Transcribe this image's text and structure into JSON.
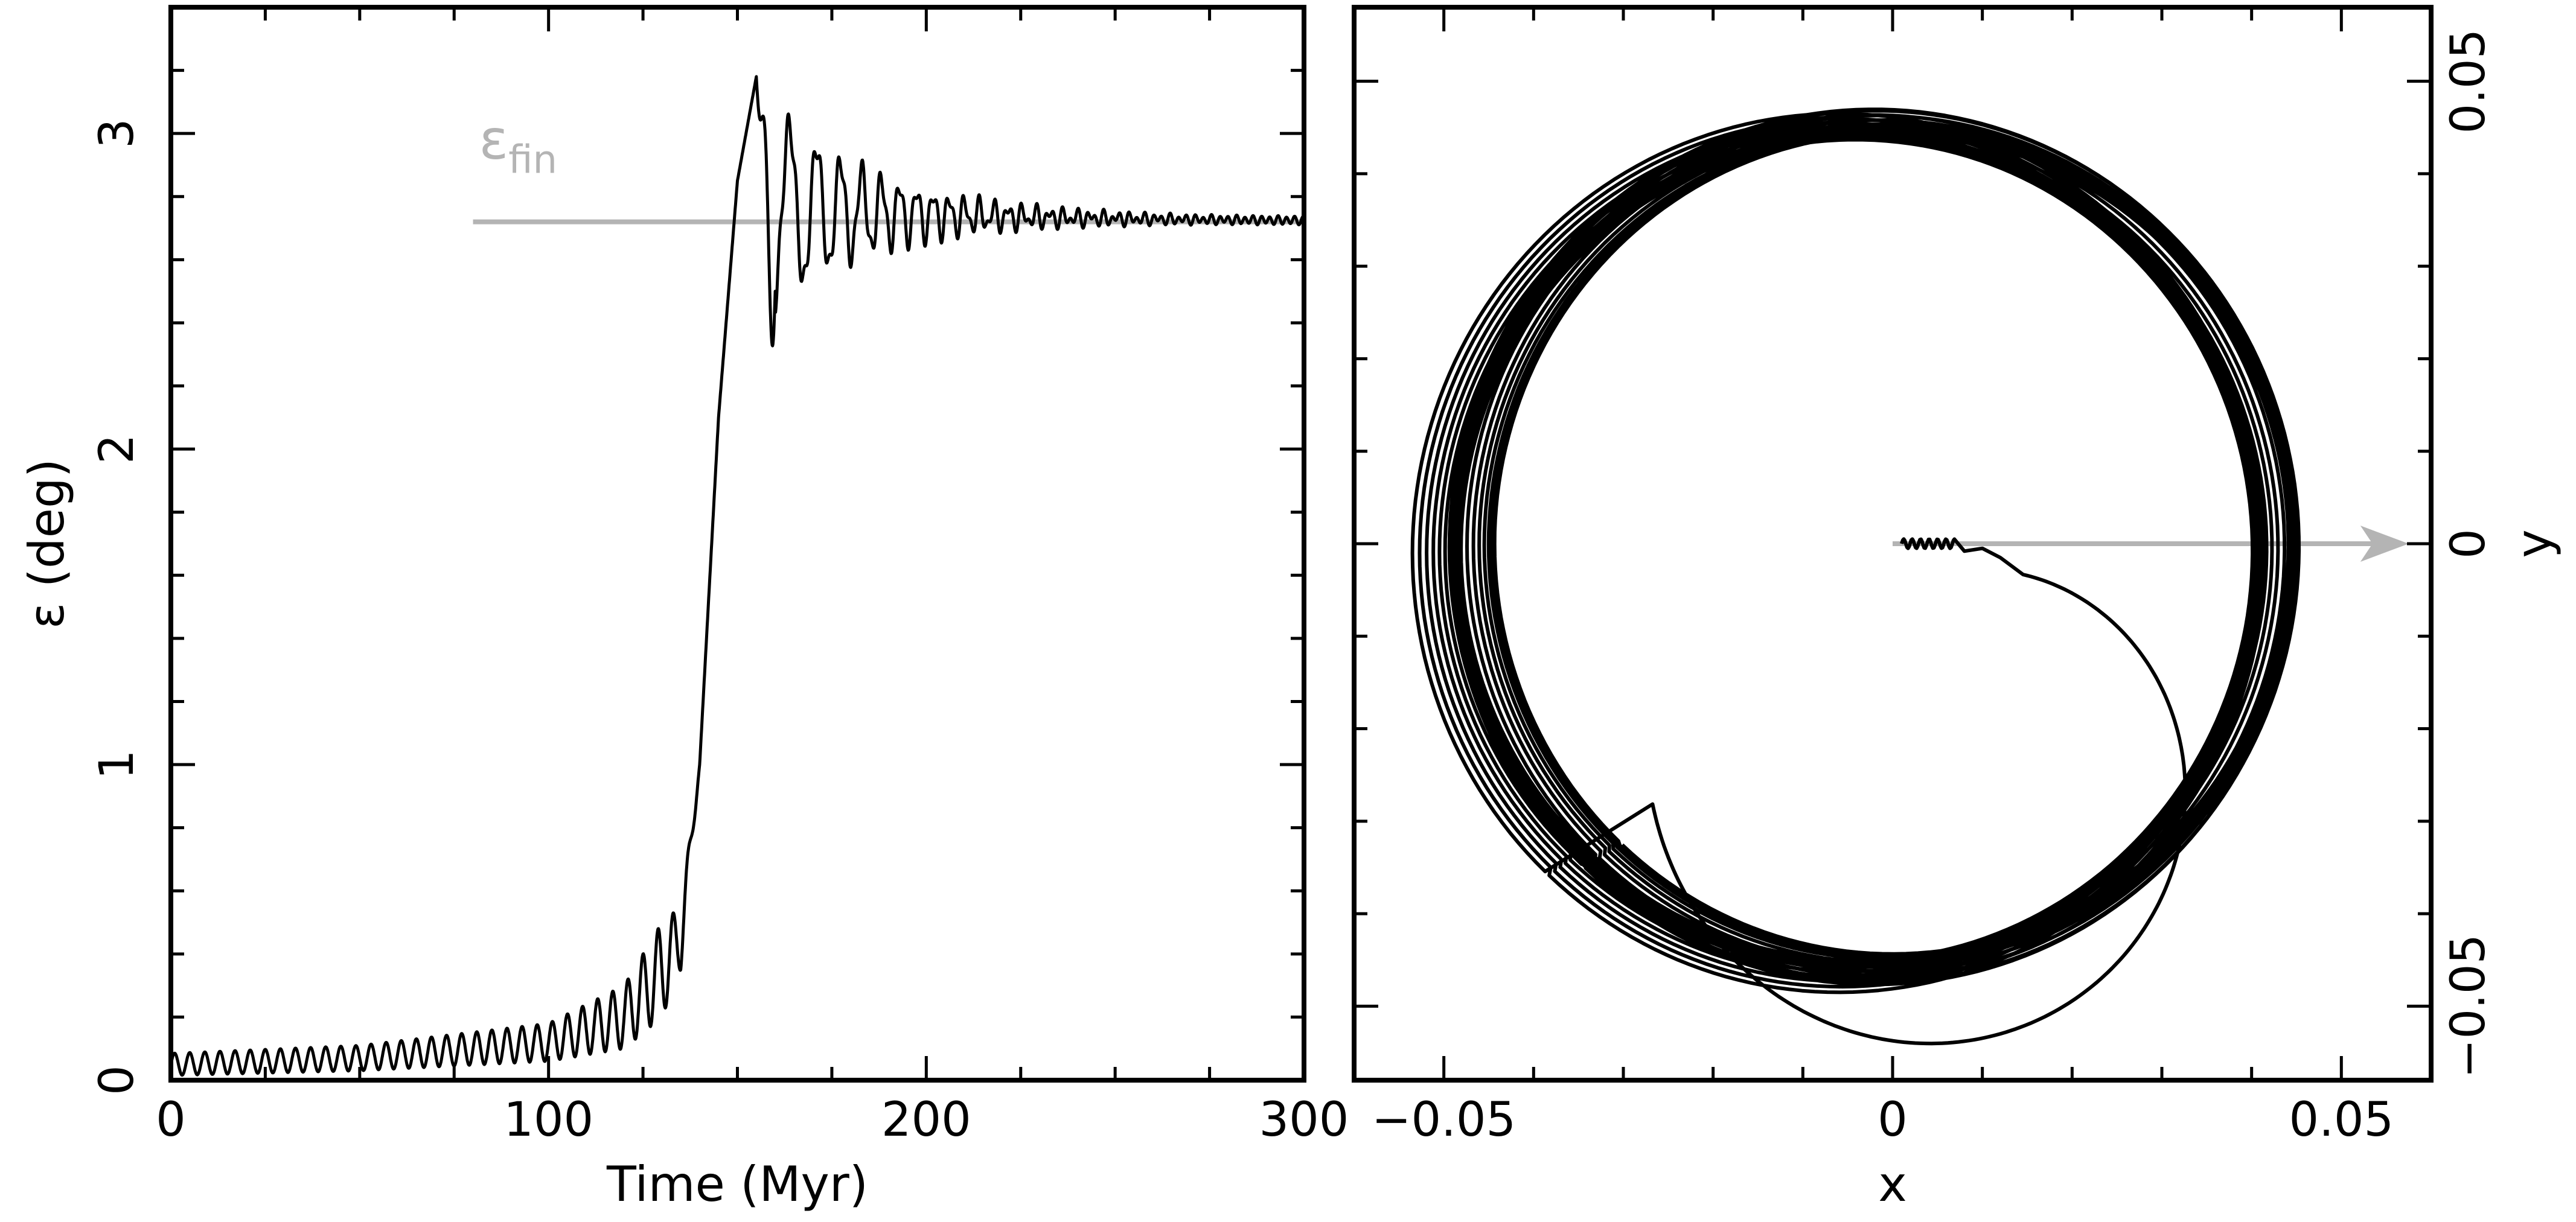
{
  "chart_data": [
    {
      "type": "line",
      "xlabel": "Time (Myr)",
      "ylabel": "ε (deg)",
      "xlim": [
        0,
        300
      ],
      "ylim": [
        0,
        3.4
      ],
      "x_ticks": [
        "0",
        "100",
        "200",
        "300"
      ],
      "y_ticks": [
        "0",
        "1",
        "2",
        "3"
      ],
      "annotation": {
        "symbol": "ε",
        "subscript": "fin",
        "value": 2.72,
        "x_start": 80,
        "x_end": 300
      },
      "series": [
        {
          "shape": "slow rise with oscillation, steep jump near 135-155 Myr, damped oscillation settling to final value",
          "x": [
            0,
            50,
            100,
            120,
            130,
            135,
            140,
            145,
            150,
            155,
            160,
            170,
            180,
            200,
            230,
            260,
            300
          ],
          "y": [
            0.05,
            0.07,
            0.12,
            0.2,
            0.35,
            0.45,
            1.0,
            2.1,
            2.85,
            3.18,
            2.5,
            2.9,
            2.6,
            2.78,
            2.71,
            2.73,
            2.72
          ],
          "oscillation_amplitude": [
            0.035,
            0.04,
            0.06,
            0.1,
            0.15,
            0.1,
            0,
            0,
            0,
            0,
            0.35,
            0.25,
            0.15,
            0.08,
            0.04,
            0.02,
            0.01
          ],
          "oscillation_period_myr": 4
        }
      ]
    },
    {
      "type": "line",
      "xlabel": "x",
      "ylabel": "y",
      "xlim": [
        -0.06,
        0.06
      ],
      "ylim": [
        -0.058,
        0.058
      ],
      "x_ticks": [
        "−0.05",
        "0",
        "0.05"
      ],
      "y_ticks": [
        "−0.05",
        "0",
        "0.05"
      ],
      "arrow": {
        "from": [
          0,
          0
        ],
        "to": [
          0.0575,
          0
        ]
      },
      "series": [
        {
          "shape": "trajectory spiralling outward from the origin into a thick band of near-circular loops",
          "start": [
            0,
            0
          ],
          "inner_loop_center": [
            0.007,
            -0.024
          ],
          "inner_loop_radius": 0.022,
          "ring_center_range_x": [
            -0.006,
            0.0
          ],
          "ring_radius_range": [
            0.044,
            0.0475
          ]
        }
      ]
    }
  ]
}
